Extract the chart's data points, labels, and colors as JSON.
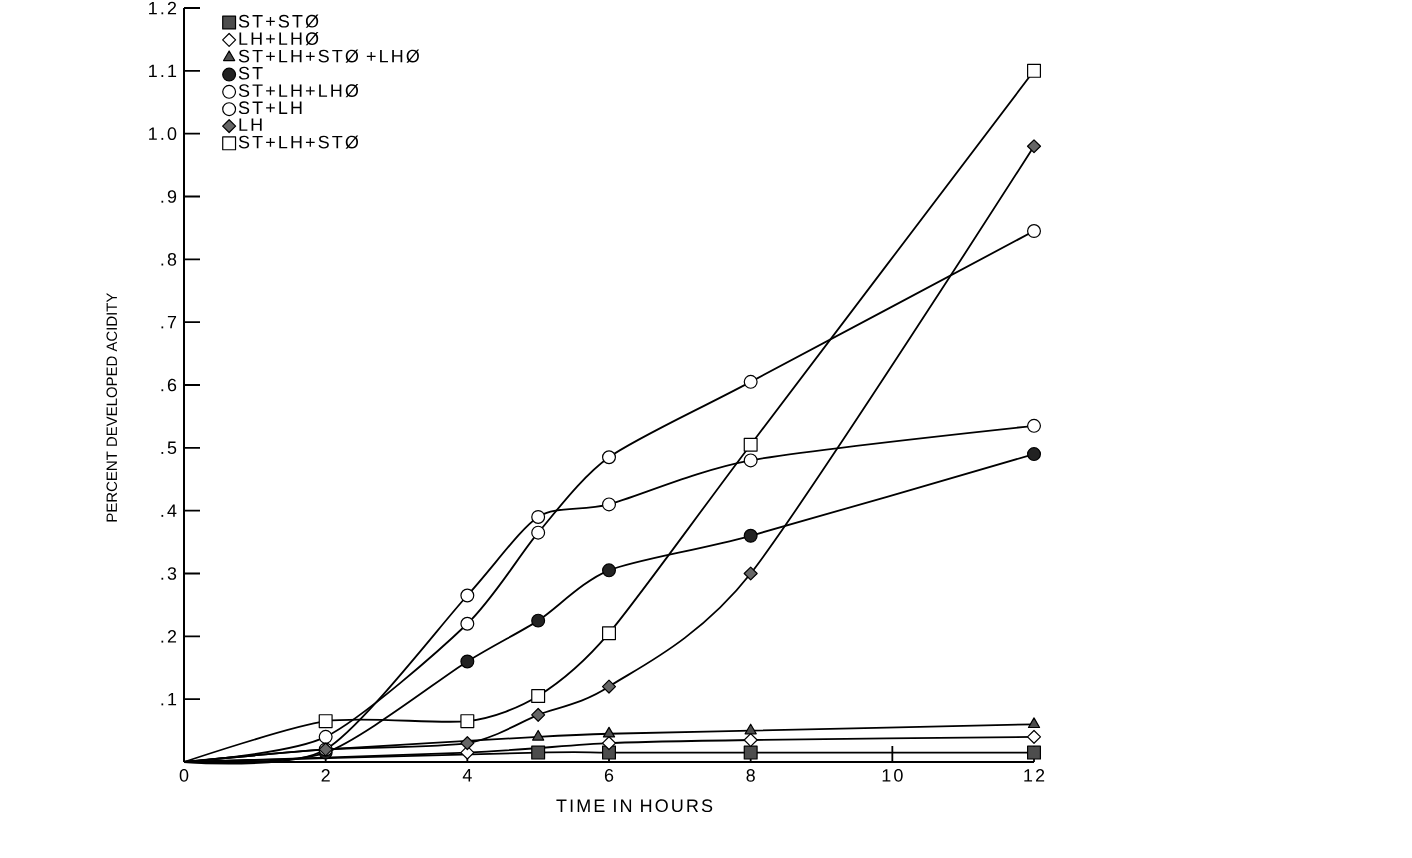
{
  "chart_data": {
    "type": "line",
    "xlabel": "TIME IN HOURS",
    "ylabel": "PERCENT DEVELOPED ACIDITY",
    "xlim": [
      0,
      12
    ],
    "xticks": [
      0,
      2,
      4,
      6,
      8,
      10,
      12
    ],
    "ylim": [
      0,
      1.2
    ],
    "yticks": [
      {
        "value": 0.1,
        "label": ".1"
      },
      {
        "value": 0.2,
        "label": ".2"
      },
      {
        "value": 0.3,
        "label": ".3"
      },
      {
        "value": 0.4,
        "label": ".4"
      },
      {
        "value": 0.5,
        "label": ".5"
      },
      {
        "value": 0.6,
        "label": ".6"
      },
      {
        "value": 0.7,
        "label": ".7"
      },
      {
        "value": 0.8,
        "label": ".8"
      },
      {
        "value": 0.9,
        "label": ".9"
      },
      {
        "value": 1,
        "label": "1.0"
      },
      1.1,
      1.2
    ],
    "legend": "top left",
    "line_style": "solid",
    "series": [
      {
        "name": "ST+STØ",
        "marker": "square",
        "color": "#4d4d4d",
        "x": [
          0,
          5,
          6,
          8,
          12
        ],
        "values": [
          0,
          0.015,
          0.015,
          0.015,
          0.015
        ]
      },
      {
        "name": "LH+LHØ",
        "marker": "diamond",
        "color": "#ffffff",
        "x": [
          0,
          4,
          6,
          8,
          12
        ],
        "values": [
          0,
          0.015,
          0.03,
          0.035,
          0.04
        ]
      },
      {
        "name": "ST+LH+STØ +LHØ",
        "marker": "triangle",
        "color": "#4d4d4d",
        "x": [
          0,
          2,
          5,
          6,
          8,
          12
        ],
        "values": [
          0,
          0.02,
          0.04,
          0.045,
          0.05,
          0.06
        ]
      },
      {
        "name": "ST",
        "marker": "circle",
        "color": "#222222",
        "x": [
          0,
          2,
          4,
          5,
          6,
          8,
          12
        ],
        "values": [
          0,
          0.015,
          0.16,
          0.225,
          0.305,
          0.36,
          0.49
        ]
      },
      {
        "name": "ST+LH+LHØ",
        "marker": "circle",
        "color": "#ffffff",
        "x": [
          0,
          2,
          4,
          5,
          6,
          8,
          12
        ],
        "values": [
          0,
          0.02,
          0.265,
          0.39,
          0.41,
          0.48,
          0.535
        ]
      },
      {
        "name": "ST+LH",
        "marker": "circle",
        "color": "#ffffff",
        "x": [
          0,
          2,
          4,
          5,
          6,
          8,
          12
        ],
        "values": [
          0,
          0.04,
          0.22,
          0.365,
          0.485,
          0.605,
          0.845
        ]
      },
      {
        "name": "LH",
        "marker": "diamond",
        "color": "#666666",
        "x": [
          0,
          2,
          4,
          5,
          6,
          8,
          12
        ],
        "values": [
          0,
          0.02,
          0.03,
          0.075,
          0.12,
          0.3,
          0.98
        ]
      },
      {
        "name": "ST+LH+STØ",
        "marker": "square",
        "color": "#ffffff",
        "x": [
          0,
          2,
          4,
          5,
          6,
          8,
          12
        ],
        "values": [
          0,
          0.065,
          0.065,
          0.105,
          0.205,
          0.505,
          1.1
        ]
      }
    ]
  }
}
